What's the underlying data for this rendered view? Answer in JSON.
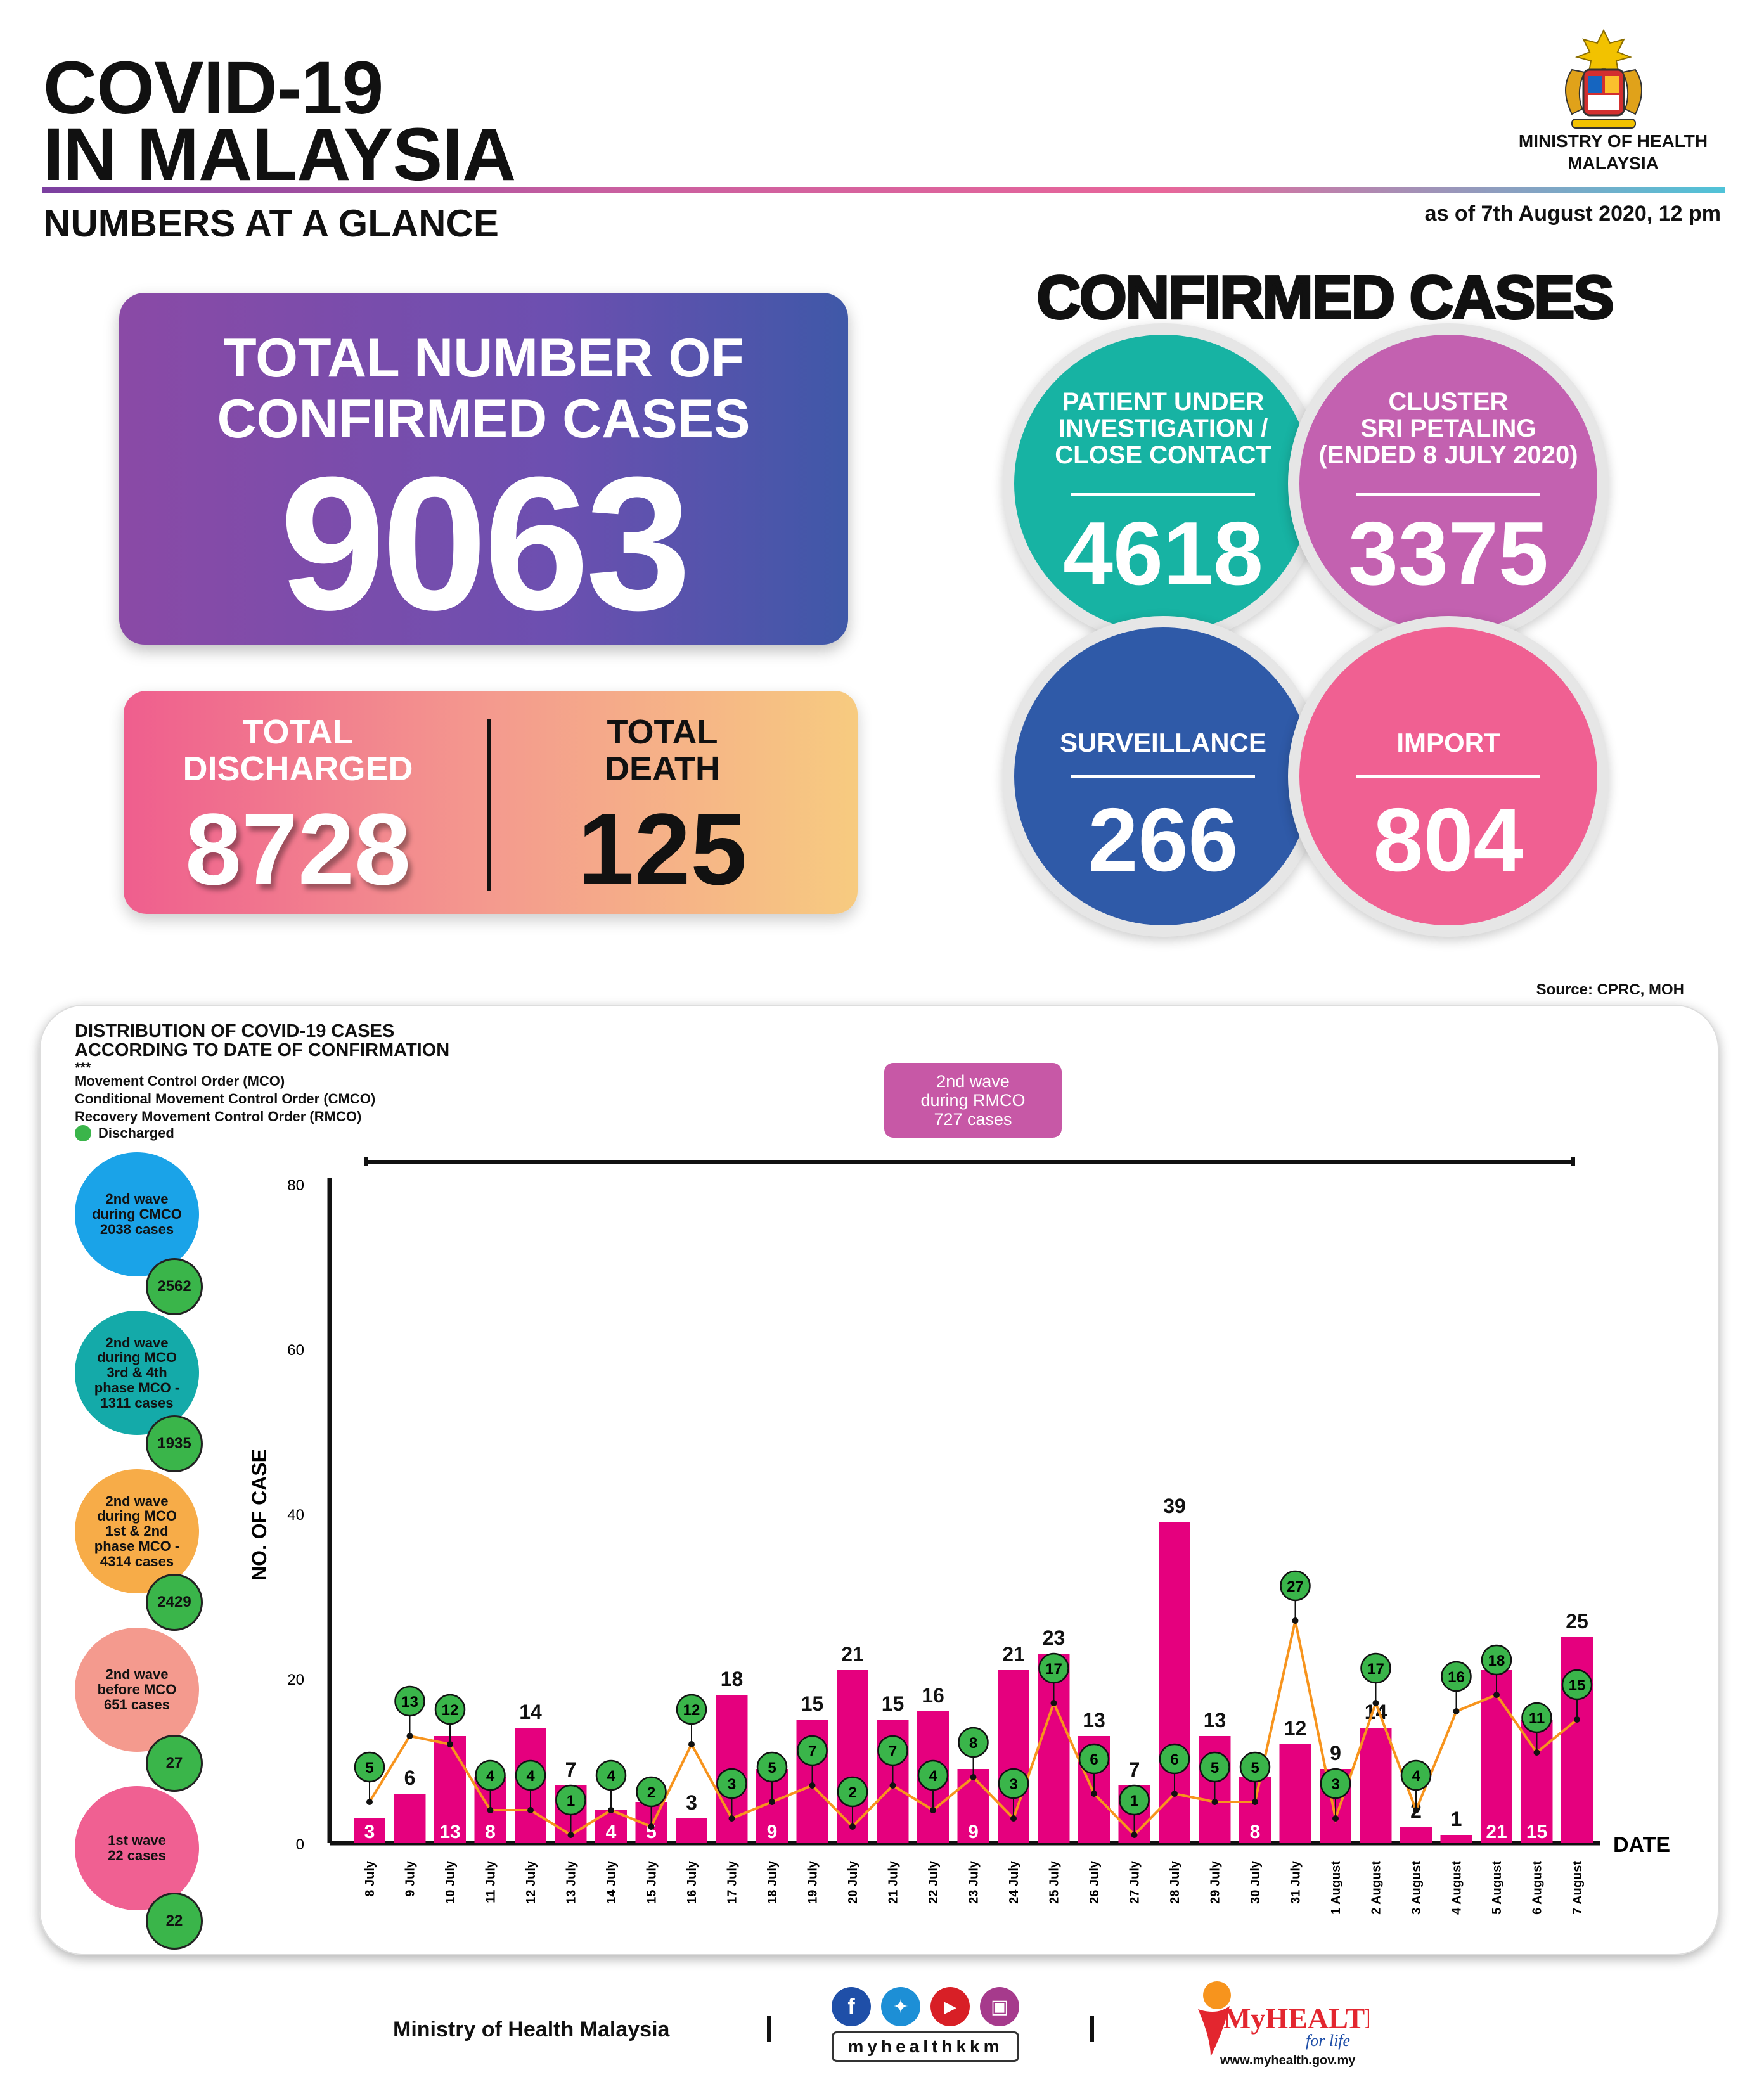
{
  "header": {
    "title_line1": "COVID-19",
    "title_line2": "IN MALAYSIA",
    "subtitle": "NUMBERS AT A GLANCE",
    "ministry_name": "MINISTRY OF HEALTH\nMALAYSIA",
    "as_of": "as of 7th August 2020, 12 pm"
  },
  "totals": {
    "confirmed_label": "TOTAL NUMBER OF\nCONFIRMED CASES",
    "confirmed_value": "9063",
    "discharged_label": "TOTAL\nDISCHARGED",
    "discharged_value": "8728",
    "death_label": "TOTAL\nDEATH",
    "death_value": "125"
  },
  "confirmed_cases": {
    "title": "CONFIRMED CASES",
    "pui_label": "PATIENT UNDER\nINVESTIGATION /\nCLOSE CONTACT",
    "pui_value": "4618",
    "cluster_label": "CLUSTER\nSRI PETALING\n(ENDED 8 JULY 2020)",
    "cluster_value": "3375",
    "surveillance_label": "SURVEILLANCE",
    "surveillance_value": "266",
    "import_label": "IMPORT",
    "import_value": "804"
  },
  "source": "Source: CPRC, MOH",
  "legend": {
    "title": "DISTRIBUTION OF COVID-19 CASES\nACCORDING TO DATE OF CONFIRMATION",
    "stars": "***",
    "mco": "Movement Control Order (MCO)",
    "cmco": "Conditional Movement Control Order (CMCO)",
    "rmco": "Recovery Movement Control Order (RMCO)",
    "discharged": "Discharged"
  },
  "waves": [
    {
      "label": "2nd wave\nduring CMCO\n2038 cases",
      "discharged": "2562",
      "color": "#1aa3e8"
    },
    {
      "label": "2nd wave\nduring MCO\n3rd & 4th\nphase MCO -\n1311 cases",
      "discharged": "1935",
      "color": "#14aaa9"
    },
    {
      "label": "2nd wave\nduring MCO\n1st & 2nd\nphase MCO -\n4314 cases",
      "discharged": "2429",
      "color": "#f7ac48"
    },
    {
      "label": "2nd wave\nbefore MCO\n651 cases",
      "discharged": "27",
      "color": "#f49a8e"
    },
    {
      "label": "1st wave\n22 cases",
      "discharged": "22",
      "color": "#f06092"
    }
  ],
  "rmco_box": "2nd wave\nduring RMCO\n727 cases",
  "chart_data": {
    "type": "bar",
    "ylabel": "NO. OF CASE",
    "xlabel": "DATE",
    "ylim": [
      0,
      80
    ],
    "yticks": [
      0,
      20,
      40,
      60,
      80
    ],
    "categories": [
      "8 July",
      "9 July",
      "10 July",
      "11 July",
      "12 July",
      "13 July",
      "14 July",
      "15 July",
      "16 July",
      "17 July",
      "18 July",
      "19 July",
      "20 July",
      "21 July",
      "22 July",
      "23 July",
      "24 July",
      "25 July",
      "26 July",
      "27 July",
      "28 July",
      "29 July",
      "30 July",
      "31 July",
      "1 August",
      "2 August",
      "3 August",
      "4 August",
      "5 August",
      "6 August",
      "7 August"
    ],
    "series": [
      {
        "values": [
          3,
          6,
          13,
          8,
          14,
          7,
          4,
          5,
          3,
          18,
          9,
          15,
          21,
          15,
          16,
          9,
          21,
          23,
          13,
          7,
          39,
          13,
          8,
          12,
          9,
          14,
          2,
          1,
          21,
          15,
          25
        ],
        "color": "#e5007e"
      },
      {
        "name": "Discharged",
        "values": [
          5,
          13,
          12,
          4,
          4,
          1,
          4,
          2,
          12,
          3,
          5,
          7,
          2,
          7,
          4,
          8,
          3,
          17,
          6,
          1,
          6,
          5,
          5,
          27,
          3,
          17,
          4,
          16,
          18,
          11,
          15
        ],
        "color": "#f7941d"
      }
    ],
    "bar_labels_inside": [
      0,
      2,
      3,
      6,
      7,
      10,
      15,
      22,
      28,
      29
    ]
  },
  "footer": {
    "ministry": "Ministry of Health Malaysia",
    "handle": "myhealthkkm",
    "myhealth_url": "www.myhealth.gov.my",
    "myhealth_brand": "MyHEALTH",
    "myhealth_tag": "for life"
  }
}
